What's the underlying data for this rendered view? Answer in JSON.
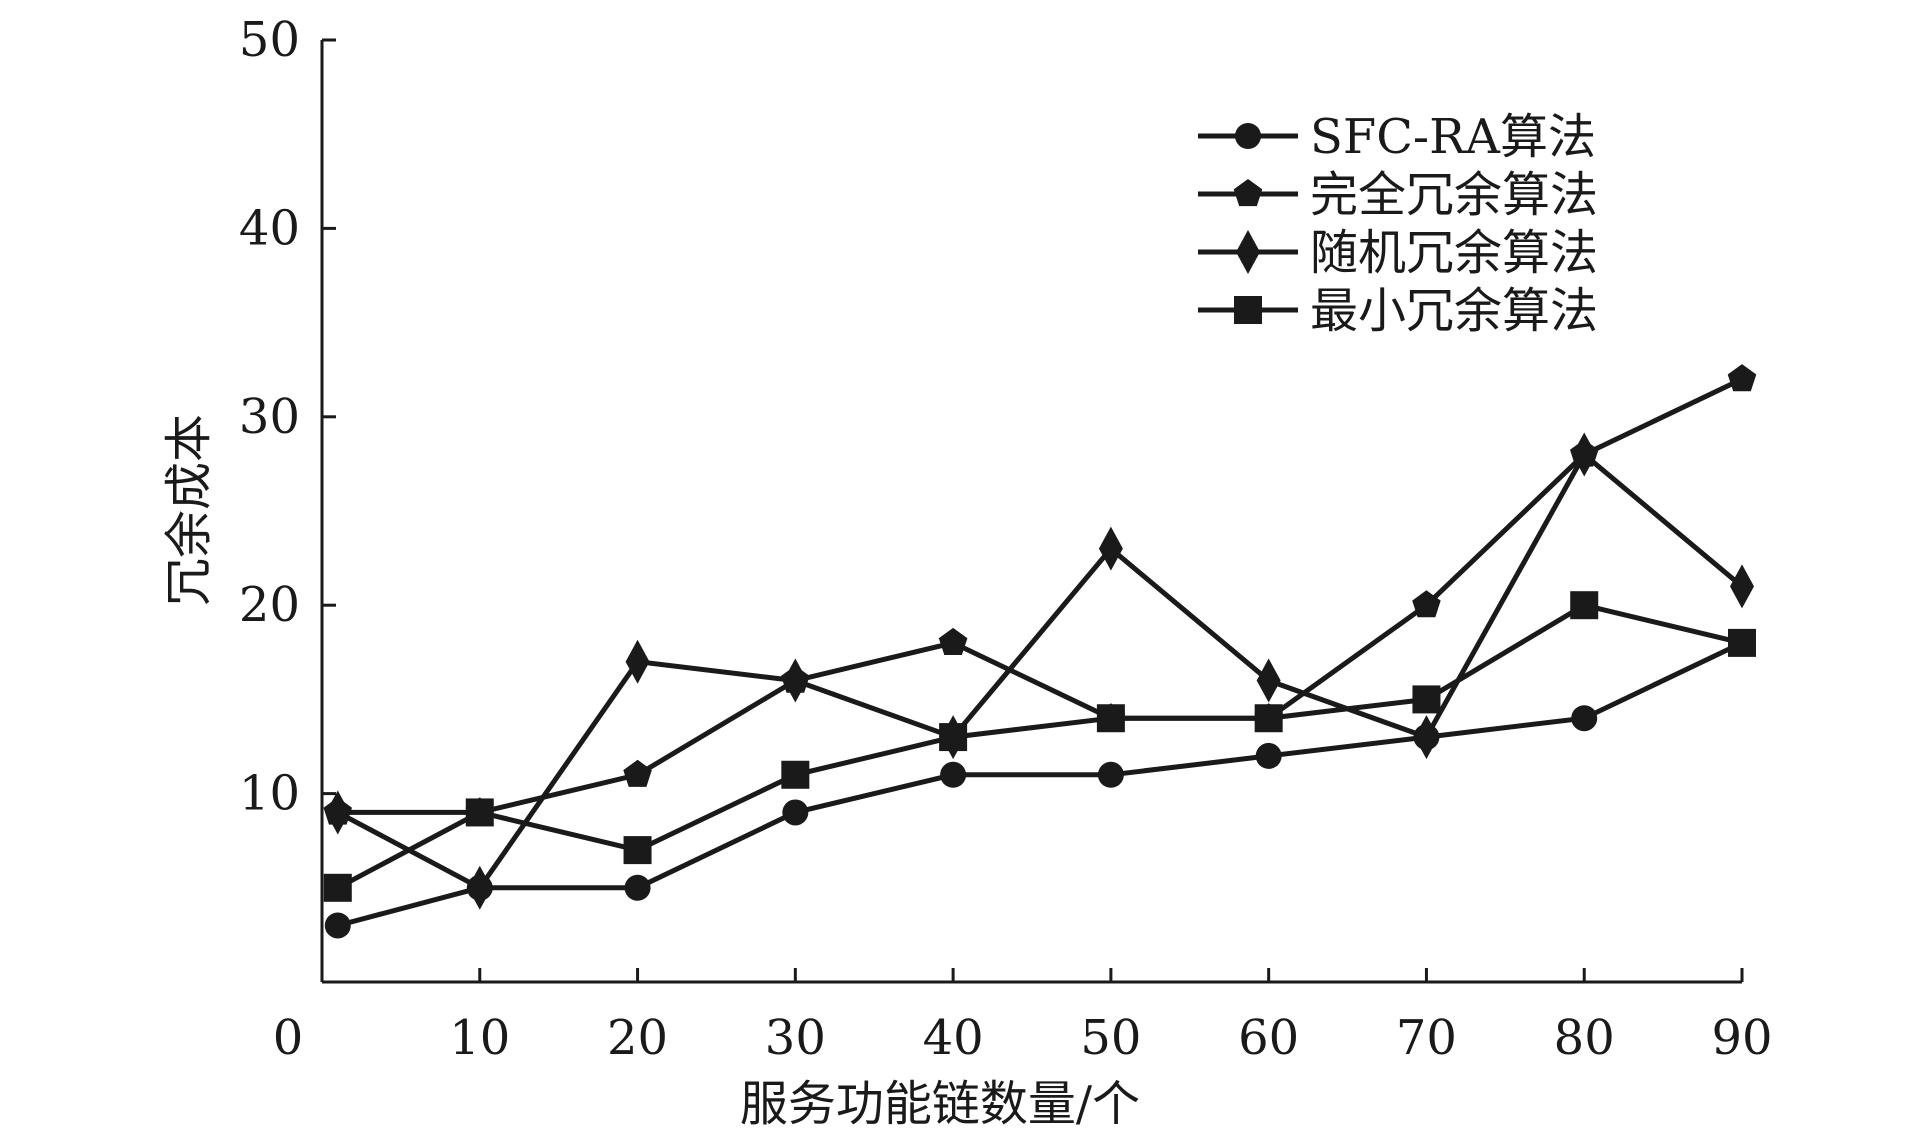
{
  "chart_data": {
    "type": "line",
    "xlabel": "服务功能链数量/个",
    "ylabel": "冗余成本",
    "x": [
      1,
      10,
      20,
      30,
      40,
      50,
      60,
      70,
      80,
      90
    ],
    "xticks": [
      "0",
      "10",
      "20",
      "30",
      "40",
      "50",
      "60",
      "70",
      "80",
      "90"
    ],
    "yticks": [
      "10",
      "20",
      "30",
      "40",
      "50"
    ],
    "xlim": [
      0,
      90
    ],
    "ylim": [
      0,
      50
    ],
    "grid": false,
    "legend_position": "top-right",
    "series": [
      {
        "name": "SFC-RA算法",
        "marker": "circle",
        "values": [
          3,
          5,
          5,
          9,
          11,
          11,
          12,
          13,
          14,
          18
        ]
      },
      {
        "name": "完全冗余算法",
        "marker": "pentagon",
        "values": [
          9,
          9,
          11,
          16,
          18,
          14,
          14,
          20,
          28,
          32
        ]
      },
      {
        "name": "随机冗余算法",
        "marker": "diamond",
        "values": [
          9,
          5,
          17,
          16,
          13,
          23,
          16,
          13,
          28,
          21
        ]
      },
      {
        "name": "最小冗余算法",
        "marker": "square",
        "values": [
          5,
          9,
          7,
          11,
          13,
          14,
          14,
          15,
          20,
          18
        ]
      }
    ],
    "color": "#1a1a1a"
  }
}
